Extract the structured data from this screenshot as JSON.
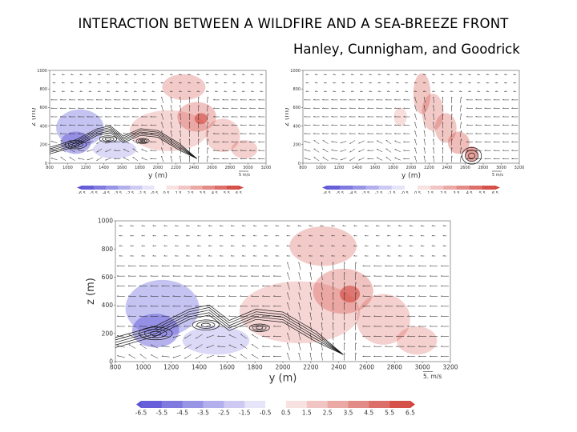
{
  "header": {
    "title": "INTERACTION BETWEEN A WILDFIRE AND A SEA-BREEZE FRONT",
    "authors": "Hanley, Cunnigham, and Goodrick"
  },
  "colors": {
    "negative": "#5a52d6",
    "positive": "#d2443c",
    "neutral": "#ffffff",
    "vectors": "#222222",
    "contours": "#111111"
  },
  "panels": [
    {
      "id": "top-left",
      "x_ticks": [
        "800",
        "1000",
        "1200",
        "1400",
        "1600",
        "1800",
        "2000",
        "2200",
        "2400",
        "2600",
        "2800",
        "3000",
        "3200"
      ],
      "y_ticks": [
        "1000",
        "800",
        "600",
        "400",
        "200",
        "0"
      ],
      "xlabel": "y (m)",
      "ylabel": "z (m)",
      "vector_label": "5 m/s",
      "colorbar_labels": [
        "-6.5",
        "-5.5",
        "-4.5",
        "-3.5",
        "-2.5",
        "-1.5",
        "-0.5",
        "0.5",
        "1.5",
        "2.5",
        "3.5",
        "4.5",
        "5.5",
        "6.5"
      ]
    },
    {
      "id": "top-right",
      "x_ticks": [
        "800",
        "1000",
        "1200",
        "1400",
        "1600",
        "1800",
        "2000",
        "2200",
        "2400",
        "2600",
        "2800",
        "3000",
        "3200"
      ],
      "y_ticks": [
        "1000",
        "800",
        "600",
        "400",
        "200",
        "0"
      ],
      "xlabel": "y (m)",
      "ylabel": "z (m)",
      "vector_label": "5 m/s",
      "colorbar_labels": [
        "-6.5",
        "-5.5",
        "-4.5",
        "-3.5",
        "-2.5",
        "-1.5",
        "-0.5",
        "0.5",
        "1.5",
        "2.5",
        "3.5",
        "4.5",
        "5.5",
        "6.5"
      ]
    },
    {
      "id": "bottom",
      "x_ticks": [
        "800",
        "1000",
        "1200",
        "1400",
        "1600",
        "1800",
        "2000",
        "2200",
        "2400",
        "2600",
        "2800",
        "3000",
        "3200"
      ],
      "y_ticks": [
        "1000",
        "800",
        "600",
        "400",
        "200",
        "0"
      ],
      "xlabel": "y (m)",
      "ylabel": "z (m)",
      "vector_label": "5. m/s",
      "colorbar_labels": [
        "-6.5",
        "-5.5",
        "-4.5",
        "-3.5",
        "-2.5",
        "-1.5",
        "-0.5",
        "0.5",
        "1.5",
        "2.5",
        "3.5",
        "4.5",
        "5.5",
        "6.5"
      ]
    }
  ]
}
